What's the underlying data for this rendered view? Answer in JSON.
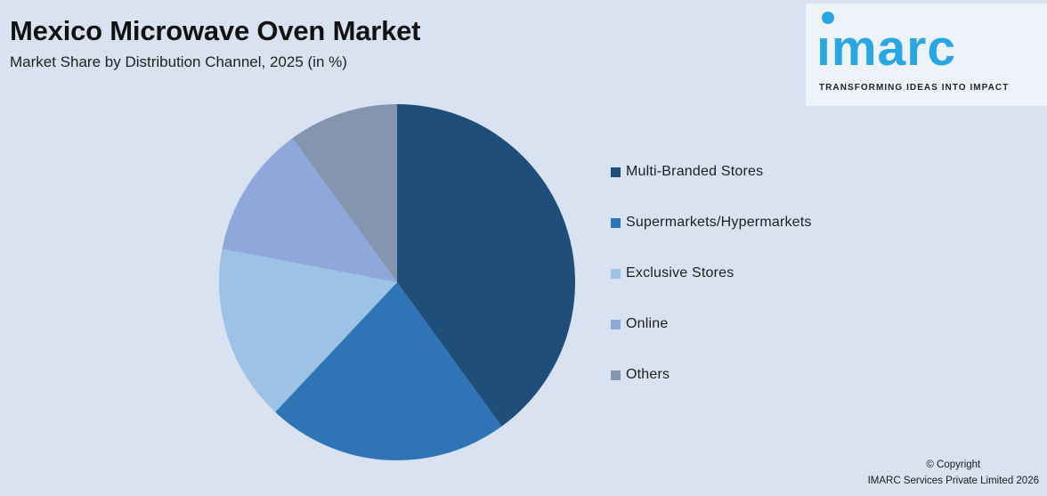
{
  "page": {
    "background": "#d9e2f1"
  },
  "header": {
    "title": "Mexico Microwave Oven Market",
    "subtitle": "Market Share by Distribution Channel, 2025 (in %)"
  },
  "logo": {
    "wordmark": "imarc",
    "tagline": "TRANSFORMING IDEAS INTO IMPACT",
    "brand_color": "#29a7e4",
    "panel_background": "#eef2f9"
  },
  "chart_data": {
    "type": "pie",
    "title": "Mexico Microwave Oven Market",
    "subtitle": "Market Share by Distribution Channel, 2025 (in %)",
    "categories": [
      "Multi-Branded Stores",
      "Supermarkets/Hypermarkets",
      "Exclusive Stores",
      "Online",
      "Others"
    ],
    "values": [
      40,
      22,
      16,
      12,
      10
    ],
    "unit": "%",
    "colors": [
      "#1f4e7b",
      "#2f74b5",
      "#9cc2e5",
      "#8fa8dc",
      "#8496af"
    ],
    "start_angle_deg": 0,
    "direction": "clockwise",
    "legend_position": "right",
    "data_labels": false
  },
  "footer": {
    "line1": "© Copyright",
    "line2": "IMARC Services Private Limited 2026"
  }
}
